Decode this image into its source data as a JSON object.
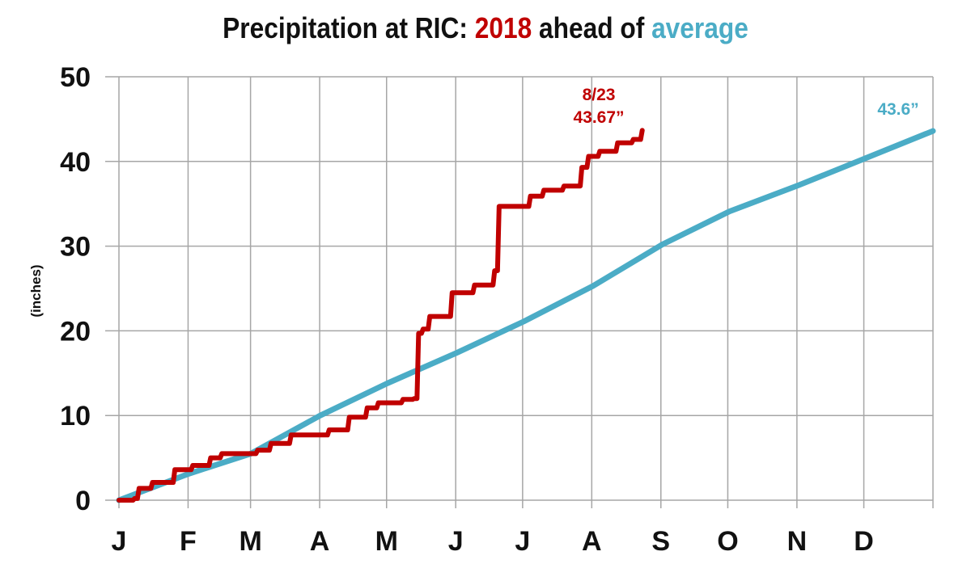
{
  "title": {
    "part1": "Precipitation at RIC: ",
    "part2": "2018",
    "part3": " ahead of ",
    "part4": "average"
  },
  "colors": {
    "year2018": "#c00000",
    "average": "#4bacc6",
    "grid": "#a6a6a6",
    "text": "#111111"
  },
  "chart_data": {
    "type": "line",
    "title": "Precipitation at RIC: 2018 ahead of average",
    "ylabel": "(inches)",
    "xlabel": "",
    "ylim": [
      0,
      50
    ],
    "yticks": [
      0,
      10,
      20,
      30,
      40,
      50
    ],
    "xlim": [
      "01-01",
      "12-31"
    ],
    "xtick_labels": [
      "J",
      "F",
      "M",
      "A",
      "M",
      "J",
      "J",
      "A",
      "S",
      "O",
      "N",
      "D"
    ],
    "grid": true,
    "legend": "none",
    "series": [
      {
        "name": "2018",
        "color": "#c00000",
        "step": true,
        "points": [
          [
            "01-01",
            0
          ],
          [
            "01-08",
            0.2
          ],
          [
            "01-10",
            1.4
          ],
          [
            "01-16",
            2.1
          ],
          [
            "01-26",
            3.6
          ],
          [
            "02-03",
            4.1
          ],
          [
            "02-11",
            5.0
          ],
          [
            "02-16",
            5.5
          ],
          [
            "03-04",
            5.9
          ],
          [
            "03-10",
            6.7
          ],
          [
            "03-19",
            7.7
          ],
          [
            "04-05",
            8.3
          ],
          [
            "04-14",
            9.8
          ],
          [
            "04-22",
            10.9
          ],
          [
            "04-27",
            11.5
          ],
          [
            "05-08",
            11.9
          ],
          [
            "05-13",
            12.0
          ],
          [
            "05-15",
            19.7
          ],
          [
            "05-17",
            20.2
          ],
          [
            "05-20",
            21.7
          ],
          [
            "05-30",
            24.5
          ],
          [
            "06-09",
            25.4
          ],
          [
            "06-18",
            27.1
          ],
          [
            "06-20",
            34.7
          ],
          [
            "07-04",
            35.9
          ],
          [
            "07-10",
            36.6
          ],
          [
            "07-19",
            37.1
          ],
          [
            "07-27",
            39.3
          ],
          [
            "07-30",
            40.6
          ],
          [
            "08-04",
            41.2
          ],
          [
            "08-12",
            42.2
          ],
          [
            "08-19",
            42.6
          ],
          [
            "08-23",
            43.67
          ]
        ]
      },
      {
        "name": "average",
        "color": "#4bacc6",
        "step": false,
        "points": [
          [
            "01-01",
            0
          ],
          [
            "02-01",
            3.1
          ],
          [
            "03-01",
            5.5
          ],
          [
            "04-01",
            10.0
          ],
          [
            "05-01",
            13.8
          ],
          [
            "06-01",
            17.4
          ],
          [
            "07-01",
            21.1
          ],
          [
            "08-01",
            25.3
          ],
          [
            "09-01",
            30.2
          ],
          [
            "10-01",
            34.1
          ],
          [
            "11-01",
            37.2
          ],
          [
            "12-01",
            40.4
          ],
          [
            "12-31",
            43.6
          ]
        ]
      }
    ],
    "annotations": {
      "end_2018_date": "8/23",
      "end_2018_value": "43.67”",
      "end_average_value": "43.6”"
    }
  }
}
